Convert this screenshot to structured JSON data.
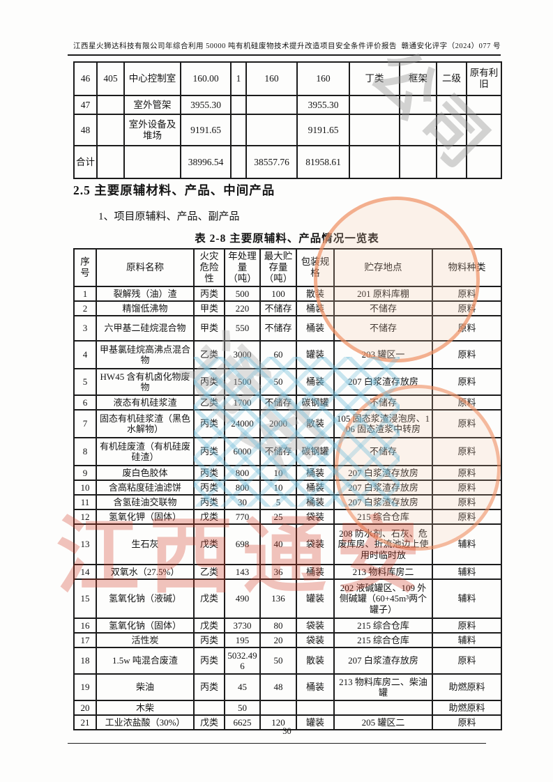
{
  "page": {
    "header_left": "江西星火狮达科技有限公司年综合利用 50000 吨有机硅废物技术提升改造项目安全条件评价报告",
    "header_right": "赣通安化评字（2024）077 号",
    "page_number": "30"
  },
  "top_table": {
    "rows": [
      [
        "46",
        "405",
        "中心控制室",
        "160.00",
        "1",
        "160",
        "160",
        "丁类",
        "框架",
        "二级",
        "原有利旧"
      ],
      [
        "47",
        "",
        "室外管架",
        "3955.30",
        "",
        "",
        "3955.30",
        "",
        "",
        "",
        ""
      ],
      [
        "48",
        "",
        "室外设备及堆场",
        "9191.65",
        "",
        "",
        "9191.65",
        "",
        "",
        "",
        ""
      ],
      [
        "合计",
        "",
        "",
        "38996.54",
        "",
        "38557.76",
        "81958.61",
        "",
        "",
        "",
        ""
      ]
    ]
  },
  "section": {
    "heading": "2.5 主要原辅材料、产品、中间产品",
    "sub_heading": "1、项目原辅料、产品、副产品",
    "table_title": "表 2-8  主要原辅料、产品情况一览表"
  },
  "materials_table": {
    "headers": [
      "序号",
      "原料名称",
      "火灾危险性",
      "年处理量（吨）",
      "最大贮存量（吨）",
      "包装规格",
      "贮存地点",
      "物料种类"
    ],
    "rows": [
      [
        "1",
        "裂解残（油）渣",
        "丙类",
        "500",
        "100",
        "散装",
        "201 原料库棚",
        "原料"
      ],
      [
        "2",
        "精馏低沸物",
        "甲类",
        "220",
        "不储存",
        "桶装",
        "不储存",
        "原料"
      ],
      [
        "3",
        "六甲基二硅烷混合物",
        "甲类",
        "550",
        "不储存",
        "桶装",
        "不储存",
        "原料"
      ],
      [
        "4",
        "甲基氯硅烷高沸点混合物",
        "乙类",
        "3000",
        "60",
        "罐装",
        "203 罐区一",
        "原料"
      ],
      [
        "5",
        "HW45 含有机卤化物废物",
        "丙类",
        "1500",
        "50",
        "桶装",
        "207 白浆渣存放房",
        "原料"
      ],
      [
        "6",
        "液态有机硅浆渣",
        "乙类",
        "1700",
        "不储存",
        "碳钢罐",
        "不储存",
        "原料"
      ],
      [
        "7",
        "固态有机硅浆渣（黑色水解物）",
        "丙类",
        "24000",
        "2000",
        "散装",
        "105 固态浆渣浸泡房、106 固态渣浆中转房",
        "原料"
      ],
      [
        "8",
        "有机硅废渣（有机硅废硅渣）",
        "丙类",
        "6000",
        "不储存",
        "碳钢罐",
        "不储存",
        "原料"
      ],
      [
        "9",
        "废白色胶体",
        "丙类",
        "800",
        "10",
        "桶装",
        "207 白浆渣存放房",
        "原料"
      ],
      [
        "10",
        "含高粘度硅油滤饼",
        "丙类",
        "800",
        "10",
        "桶装",
        "207 白浆渣存放房",
        "原料"
      ],
      [
        "11",
        "含氢硅油交联物",
        "丙类",
        "30",
        "5",
        "桶装",
        "207 白浆渣存放房",
        "原料"
      ],
      [
        "12",
        "氢氧化钾（固体）",
        "戊类",
        "770",
        "25",
        "袋装",
        "215 综合仓库",
        "原料"
      ],
      [
        "13",
        "生石灰",
        "戊类",
        "698",
        "40",
        "袋装",
        "208 防水剂、石灰、危废库房、折流池边上使用时临时放",
        "辅料"
      ],
      [
        "14",
        "双氧水（27.5%）",
        "乙类",
        "143",
        "36",
        "桶装",
        "213 物料库房二",
        "辅料"
      ],
      [
        "15",
        "氢氧化钠（液碱）",
        "戊类",
        "490",
        "136",
        "罐装",
        "202 液碱罐区、109 外侧碱罐（60+45m³两个罐子）",
        "辅料"
      ],
      [
        "16",
        "氢氧化钠（固体）",
        "戊类",
        "3730",
        "80",
        "袋装",
        "215 综合仓库",
        "原料"
      ],
      [
        "17",
        "活性炭",
        "丙类",
        "195",
        "20",
        "袋装",
        "215 综合仓库",
        "辅料"
      ],
      [
        "18",
        "1.5w 吨混合废渣",
        "丙类",
        "5032.496",
        "50",
        "散装",
        "207 白浆渣存放房",
        "原料"
      ],
      [
        "19",
        "柴油",
        "丙类",
        "45",
        "48",
        "桶装",
        "213 物料库房二、柴油罐",
        "助燃原料"
      ],
      [
        "20",
        "木柴",
        "",
        "50",
        "",
        "",
        "",
        "助燃原料"
      ],
      [
        "21",
        "工业浓盐酸（30%）",
        "戊类",
        "6625",
        "120",
        "罐装",
        "205 罐区二",
        "原料"
      ]
    ]
  },
  "watermark": {
    "red_text": "江西通安",
    "seal_text_1": "公司",
    "seal_text_2": "通安",
    "ring_color": "#ee8b5c",
    "red_text_color": "#d53a26"
  }
}
